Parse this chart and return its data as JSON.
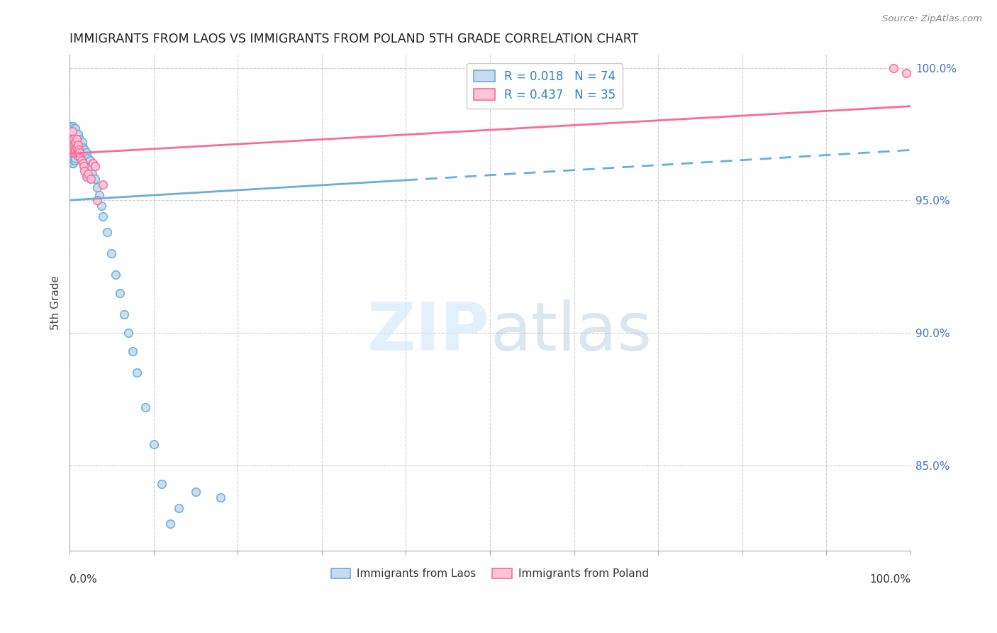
{
  "title": "IMMIGRANTS FROM LAOS VS IMMIGRANTS FROM POLAND 5TH GRADE CORRELATION CHART",
  "source": "Source: ZipAtlas.com",
  "ylabel": "5th Grade",
  "legend_laos": "Immigrants from Laos",
  "legend_poland": "Immigrants from Poland",
  "R_laos": "0.018",
  "N_laos": "74",
  "R_poland": "0.437",
  "N_poland": "35",
  "color_laos_edge": "#6baed6",
  "color_laos_face": "#c6dbef",
  "color_poland_edge": "#fb6a9a",
  "color_poland_face": "#fcc5d8",
  "color_blue_text": "#3182bd",
  "color_pink_text": "#e6547a",
  "watermark_zip_color": "#c6dbef",
  "watermark_atlas_color": "#a0c0e0",
  "background": "#ffffff",
  "grid_color": "#d0d0d0",
  "laos_x": [
    0.001,
    0.001,
    0.001,
    0.002,
    0.002,
    0.002,
    0.002,
    0.003,
    0.003,
    0.003,
    0.003,
    0.004,
    0.004,
    0.004,
    0.004,
    0.004,
    0.005,
    0.005,
    0.005,
    0.005,
    0.006,
    0.006,
    0.006,
    0.006,
    0.007,
    0.007,
    0.007,
    0.007,
    0.008,
    0.008,
    0.008,
    0.009,
    0.009,
    0.009,
    0.01,
    0.01,
    0.01,
    0.011,
    0.011,
    0.012,
    0.012,
    0.013,
    0.014,
    0.015,
    0.015,
    0.016,
    0.017,
    0.018,
    0.019,
    0.02,
    0.022,
    0.024,
    0.025,
    0.027,
    0.03,
    0.033,
    0.035,
    0.038,
    0.04,
    0.045,
    0.05,
    0.055,
    0.06,
    0.065,
    0.07,
    0.075,
    0.08,
    0.09,
    0.1,
    0.11,
    0.12,
    0.13,
    0.15,
    0.18
  ],
  "laos_y": [
    0.975,
    0.972,
    0.968,
    0.978,
    0.973,
    0.969,
    0.965,
    0.976,
    0.971,
    0.968,
    0.964,
    0.978,
    0.975,
    0.971,
    0.968,
    0.964,
    0.977,
    0.973,
    0.969,
    0.965,
    0.976,
    0.972,
    0.969,
    0.965,
    0.977,
    0.973,
    0.969,
    0.966,
    0.975,
    0.971,
    0.968,
    0.974,
    0.97,
    0.967,
    0.975,
    0.972,
    0.968,
    0.972,
    0.969,
    0.973,
    0.969,
    0.97,
    0.968,
    0.972,
    0.969,
    0.97,
    0.968,
    0.969,
    0.967,
    0.968,
    0.966,
    0.965,
    0.963,
    0.96,
    0.958,
    0.955,
    0.952,
    0.948,
    0.944,
    0.938,
    0.93,
    0.922,
    0.915,
    0.907,
    0.9,
    0.893,
    0.885,
    0.872,
    0.858,
    0.843,
    0.828,
    0.834,
    0.84,
    0.838
  ],
  "poland_x": [
    0.001,
    0.002,
    0.002,
    0.003,
    0.003,
    0.003,
    0.004,
    0.004,
    0.005,
    0.005,
    0.006,
    0.006,
    0.007,
    0.007,
    0.008,
    0.008,
    0.009,
    0.01,
    0.01,
    0.011,
    0.012,
    0.013,
    0.014,
    0.016,
    0.017,
    0.018,
    0.02,
    0.022,
    0.025,
    0.028,
    0.03,
    0.033,
    0.04,
    0.98,
    0.995
  ],
  "poland_y": [
    0.974,
    0.972,
    0.969,
    0.976,
    0.973,
    0.97,
    0.971,
    0.968,
    0.973,
    0.97,
    0.971,
    0.968,
    0.972,
    0.969,
    0.973,
    0.97,
    0.968,
    0.971,
    0.968,
    0.969,
    0.968,
    0.966,
    0.965,
    0.964,
    0.963,
    0.961,
    0.959,
    0.96,
    0.958,
    0.964,
    0.963,
    0.95,
    0.956,
    1.0,
    0.998
  ],
  "xmin": 0.0,
  "xmax": 1.0,
  "ymin": 0.818,
  "ymax": 1.005
}
